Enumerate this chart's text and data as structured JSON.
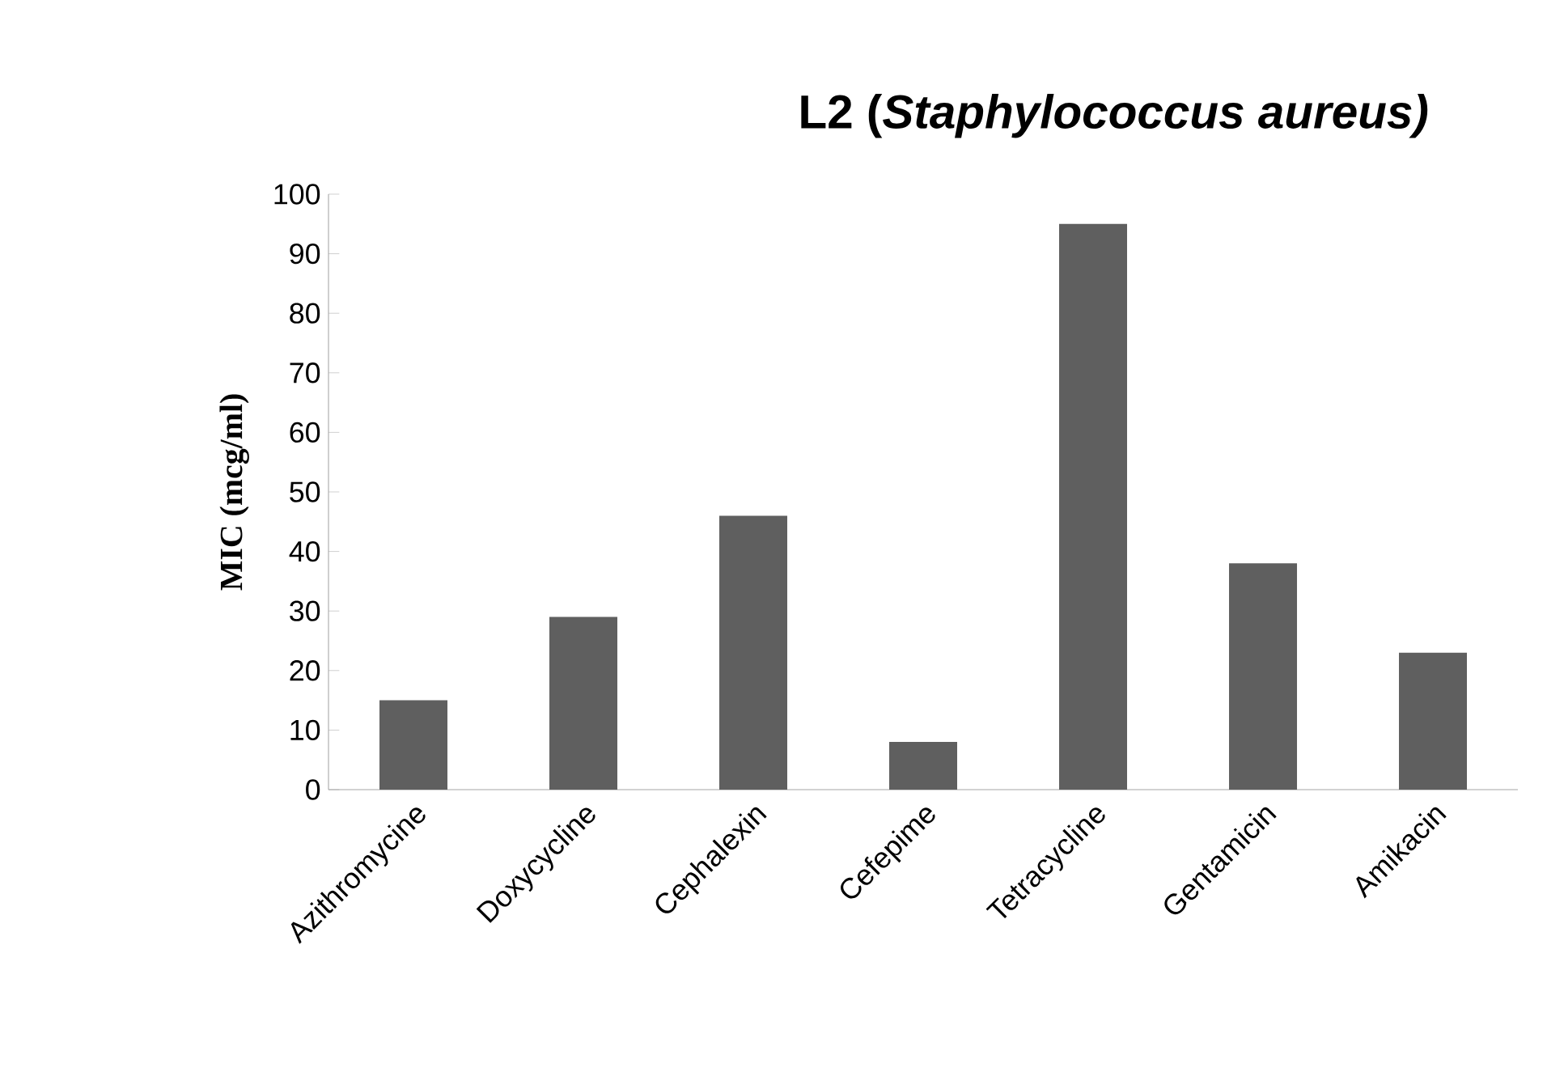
{
  "chart_data": {
    "type": "bar",
    "title": "L2 (*Staphylococcus aureus)*",
    "ylabel": "MIC (mcg/ml)",
    "categories": [
      "Azithromycine",
      "Doxycycline",
      "Cephalexin",
      "Cefepime",
      "Tetracycline",
      "Gentamicin",
      "Amikacin"
    ],
    "values": [
      15,
      29,
      46,
      8,
      95,
      38,
      23
    ],
    "color": "#5f5f5f",
    "ylim": [
      0,
      100
    ],
    "yticks": [
      0,
      10,
      20,
      30,
      40,
      50,
      60,
      70,
      80,
      90,
      100
    ]
  }
}
